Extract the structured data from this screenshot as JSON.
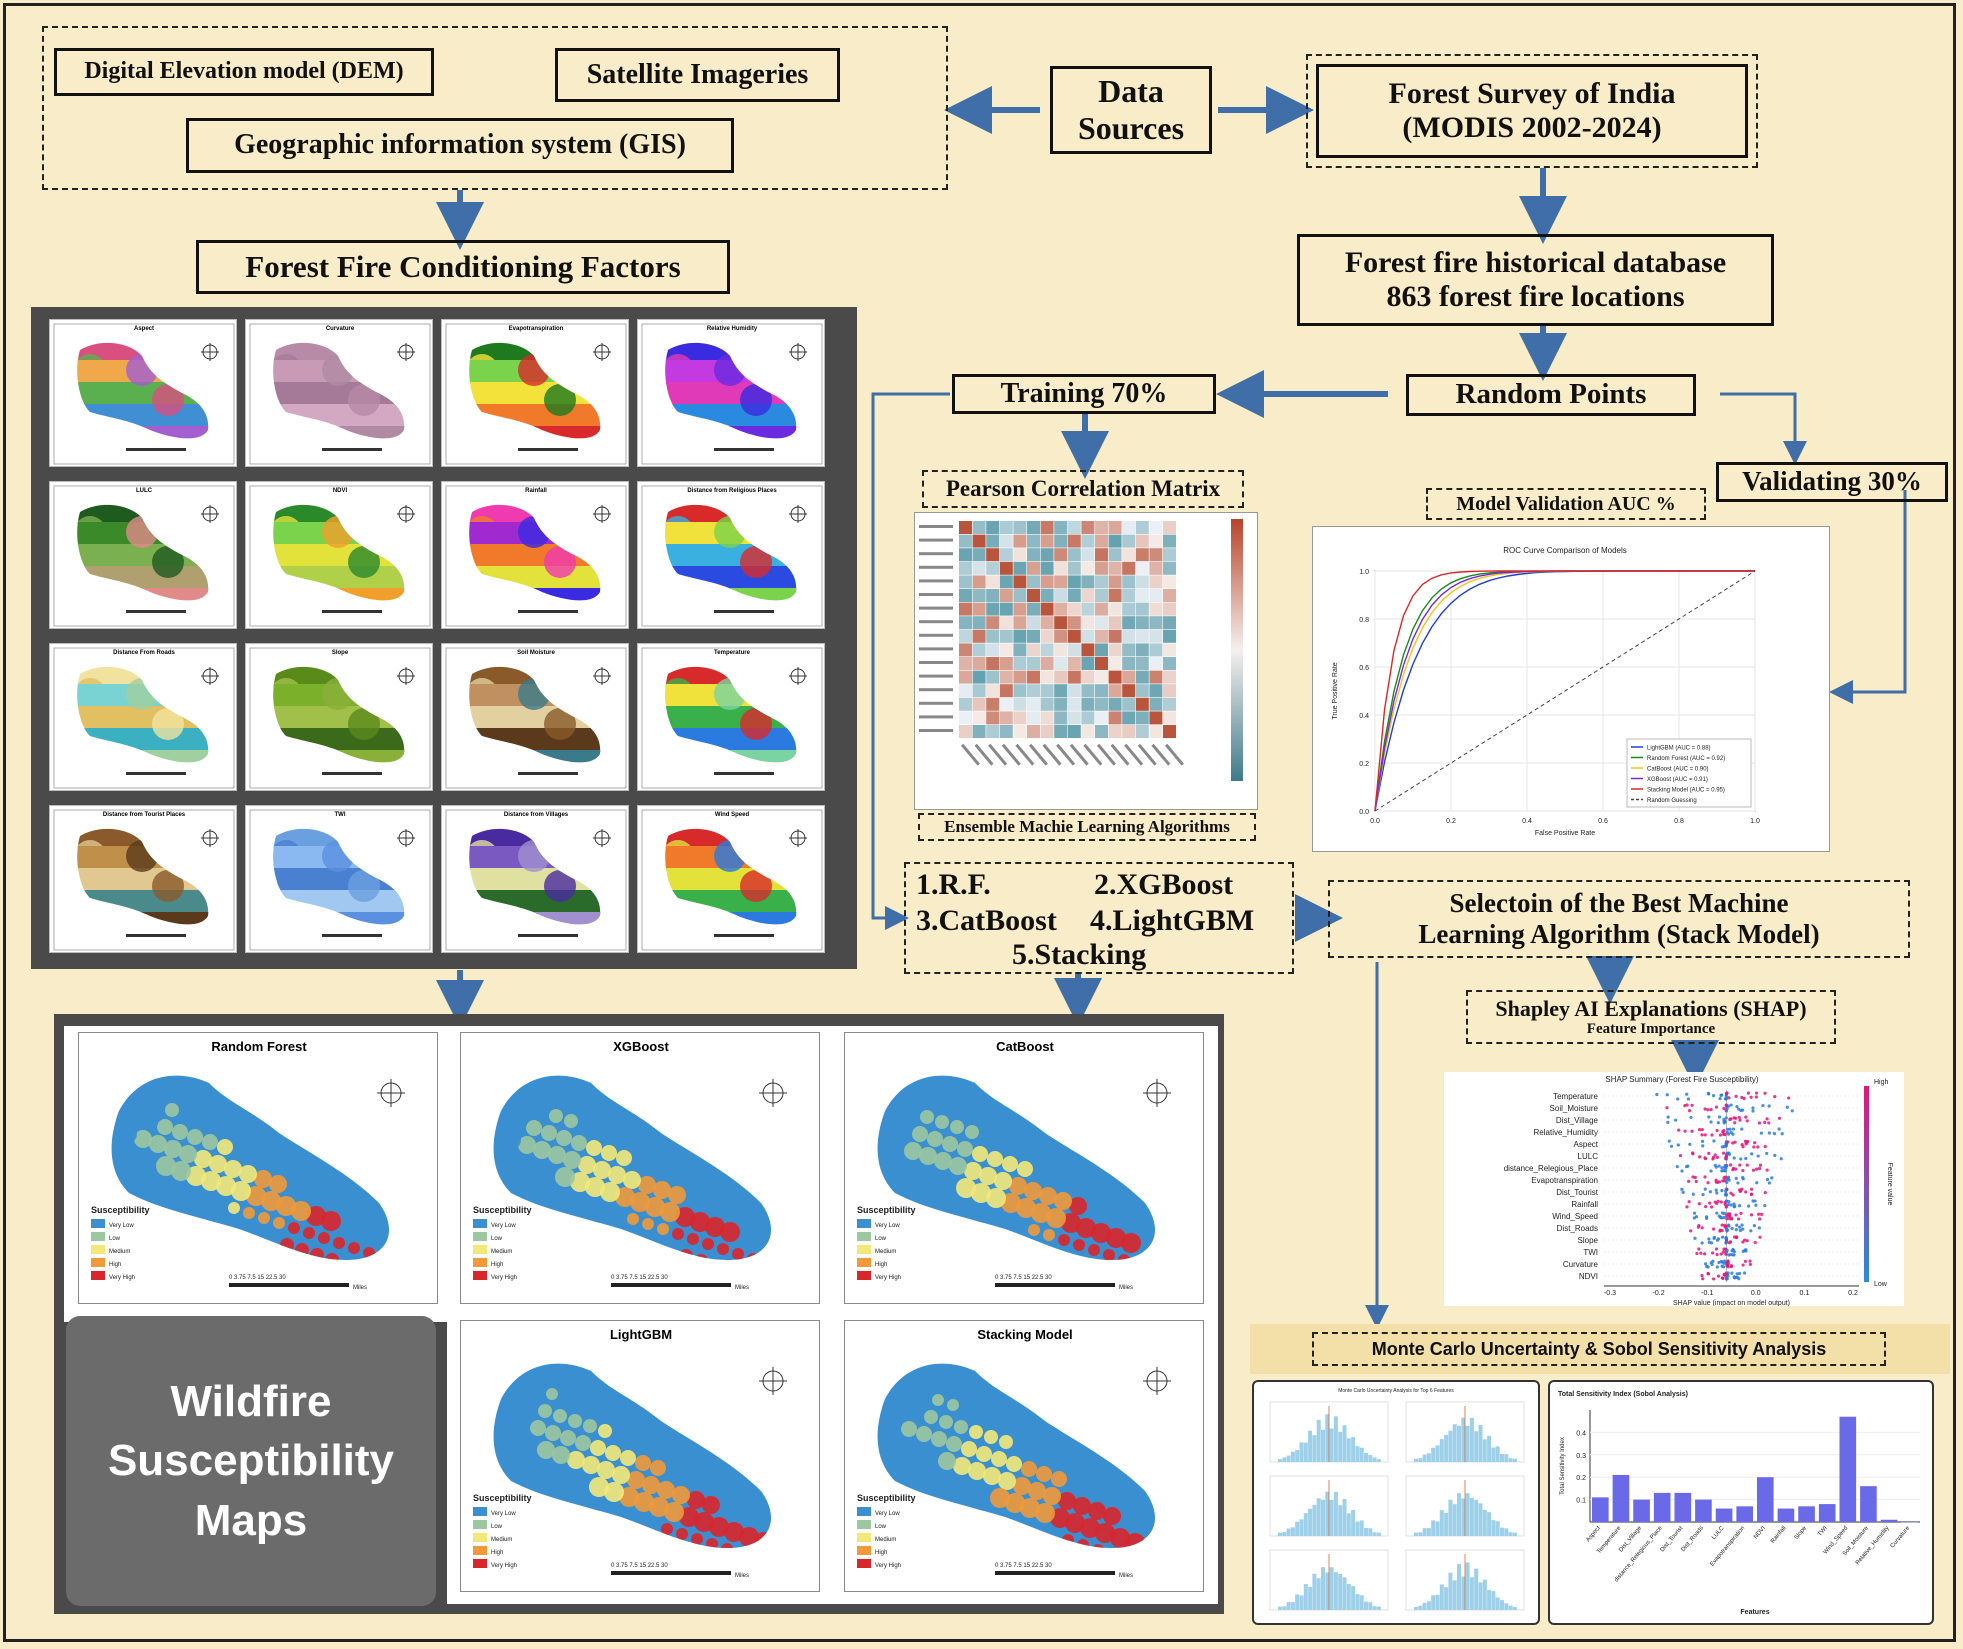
{
  "data_sources": {
    "title": "Data Sources",
    "dem": "Digital Elevation model (DEM)",
    "satellite": "Satellite Imageries",
    "gis": "Geographic information system (GIS)",
    "fsi_line1": "Forest Survey of India",
    "fsi_line2": "(MODIS 2002-2024)"
  },
  "conditioning": {
    "title": "Forest Fire Conditioning Factors",
    "factors": [
      "Aspect",
      "Curvature",
      "Evapotranspiration",
      "Relative Humidity",
      "LULC",
      "NDVI",
      "Rainfall",
      "Distance from Religious Places",
      "Distance From Roads",
      "Slope",
      "Soil Moisture",
      "Temperature",
      "Distance from Tourist Places",
      "TWI",
      "Distance from Villages",
      "Wind Speed"
    ]
  },
  "database": {
    "line1": "Forest fire historical database",
    "line2": "863 forest fire locations"
  },
  "random_points": "Random  Points",
  "training": "Training 70%",
  "validating": "Validating 30%",
  "pearson": "Pearson Correlation Matrix",
  "ensemble": "Ensemble Machie Learning Algorithms",
  "algorithms": {
    "rf": "1.R.F.",
    "xgb": "2.XGBoost",
    "cat": "3.CatBoost",
    "lgbm": "4.LightGBM",
    "stack": "5.Stacking"
  },
  "validation": {
    "title": "Model Validation AUC %",
    "roc_title": "ROC Curve Comparison of Models",
    "xlabel": "False Positive Rate",
    "ylabel": "True Positive Rate",
    "legend": [
      "LightGBM (AUC = 0.88)",
      "Random Forest (AUC = 0.92)",
      "CatBoost (AUC = 0.90)",
      "XGBoost (AUC = 0.91)",
      "Stacking Model (AUC = 0.95)",
      "Random Guessing"
    ],
    "legend_colors": [
      "#1f3fd6",
      "#1a8a1a",
      "#e8c81a",
      "#7a2ad6",
      "#d62a2a",
      "#444444"
    ]
  },
  "selection": {
    "line1": "Selectoin of the Best Machine",
    "line2": "Learning Algorithm (Stack Model)"
  },
  "shap": {
    "title": "Shapley AI  Explanations (SHAP)",
    "subtitle": "Feature Importance",
    "plot_title": "SHAP Summary (Forest Fire Susceptibility)",
    "features": [
      "Temperature",
      "Soil_Moisture",
      "Dist_Village",
      "Relative_Humidity",
      "Aspect",
      "LULC",
      "distance_Relegious_Place",
      "Evapotranspiration",
      "Dist_Tourist",
      "Rainfall",
      "Wind_Speed",
      "Dist_Roads",
      "Slope",
      "TWI",
      "Curvature",
      "NDVI"
    ],
    "xlabel": "SHAP value (impact on model output)",
    "high": "High",
    "low": "Low",
    "feature_value": "Feature value",
    "xticks": [
      "-0.3",
      "-0.2",
      "-0.1",
      "0.0",
      "0.1",
      "0.2"
    ]
  },
  "monte_carlo": {
    "title": "Monte Carlo Uncertainty & Sobol Sensitivity Analysis",
    "hist_title": "Monte Carlo Uncertainty Analysis for Top 6 Features",
    "sobol_title": "Total Sensitivity Index (Sobol Analysis)",
    "sobol_ylabel": "Total Sensitivity Index",
    "sobol_xlabel": "Features"
  },
  "sobol_data": {
    "type": "bar",
    "categories": [
      "Aspect",
      "Temperature",
      "Dist_Village",
      "distance_Relegious_Place",
      "Dist_Tourist",
      "Dist_Roads",
      "LULC",
      "Evapotranspiration",
      "NDVI",
      "Rainfall",
      "Slope",
      "TWI",
      "Wind_Speed",
      "Soil_Moisture",
      "Relative_Humidity",
      "Curvature"
    ],
    "values": [
      0.11,
      0.21,
      0.1,
      0.13,
      0.13,
      0.1,
      0.06,
      0.07,
      0.2,
      0.06,
      0.07,
      0.08,
      0.47,
      0.16,
      0.01,
      0.0
    ],
    "yticks": [
      "0.1",
      "0.2",
      "0.3",
      "0.4"
    ],
    "ylim": [
      0,
      0.5
    ]
  },
  "susceptibility": {
    "panel_title_line1": "Wildfire",
    "panel_title_line2": "Susceptibility",
    "panel_title_line3": "Maps",
    "maps": [
      "Random Forest",
      "XGBoost",
      "CatBoost",
      "LightGBM",
      "Stacking Model"
    ],
    "legend_title": "Susceptibility",
    "classes": [
      "Very Low",
      "Low",
      "Medium",
      "High",
      "Very High"
    ],
    "class_colors": [
      "#3a8fd0",
      "#9cc7a0",
      "#f3e97a",
      "#f09a3a",
      "#d9262a"
    ],
    "scale": "0  3.75 7.5     15      22.5     30",
    "scale_unit": "Miles"
  }
}
